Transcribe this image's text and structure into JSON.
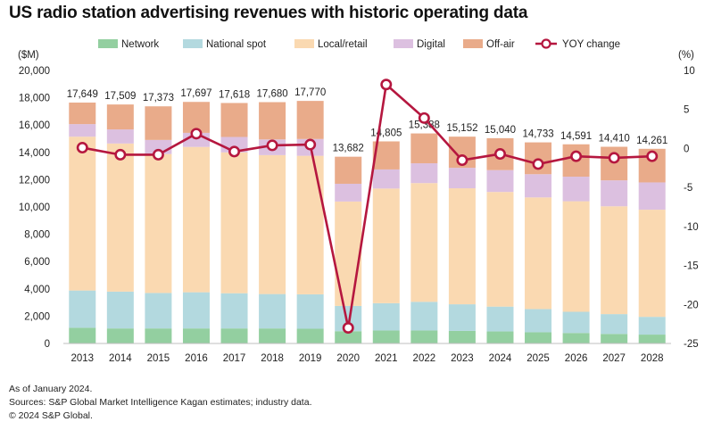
{
  "title": "US radio station advertising revenues with historic operating data",
  "footnotes": [
    "As of January 2024.",
    "Sources: S&P Global Market Intelligence Kagan estimates; industry data.",
    "© 2024 S&P Global."
  ],
  "chart_data": {
    "type": "bar",
    "stacked": true,
    "categories": [
      "2013",
      "2014",
      "2015",
      "2016",
      "2017",
      "2018",
      "2019",
      "2020",
      "2021",
      "2022",
      "2023",
      "2024",
      "2025",
      "2026",
      "2027",
      "2028"
    ],
    "totals": [
      17649,
      17509,
      17373,
      17697,
      17618,
      17680,
      17770,
      13682,
      14805,
      15388,
      15152,
      15040,
      14733,
      14591,
      14410,
      14261
    ],
    "total_labels": [
      "17,649",
      "17,509",
      "17,373",
      "17,697",
      "17,618",
      "17,680",
      "17,770",
      "13,682",
      "14,805",
      "15,388",
      "15,152",
      "15,040",
      "14,733",
      "14,591",
      "14,410",
      "14,261"
    ],
    "series": [
      {
        "name": "Network",
        "color": "#93cfa0",
        "values": [
          1150,
          1100,
          1100,
          1100,
          1100,
          1100,
          1080,
          900,
          950,
          950,
          920,
          880,
          820,
          770,
          700,
          650
        ]
      },
      {
        "name": "National spot",
        "color": "#b3d9df",
        "values": [
          2730,
          2700,
          2600,
          2650,
          2580,
          2520,
          2520,
          1850,
          2000,
          2100,
          1950,
          1820,
          1700,
          1550,
          1450,
          1300
        ]
      },
      {
        "name": "Local/retail",
        "color": "#fad9b1",
        "values": [
          11270,
          10850,
          10180,
          10650,
          10320,
          10180,
          10150,
          7650,
          8400,
          8700,
          8500,
          8400,
          8180,
          8100,
          7900,
          7850
        ]
      },
      {
        "name": "Digital",
        "color": "#dcc0e0",
        "values": [
          920,
          1030,
          1030,
          1030,
          1130,
          1150,
          1230,
          1300,
          1400,
          1450,
          1500,
          1600,
          1700,
          1800,
          1900,
          2000
        ]
      },
      {
        "name": "Off-air",
        "color": "#e9ab8a",
        "values": [
          1579,
          1829,
          2463,
          2267,
          2488,
          2730,
          2790,
          1982,
          2055,
          2188,
          2282,
          2340,
          2333,
          2371,
          2460,
          2461
        ]
      }
    ],
    "line_series": {
      "name": "YOY change",
      "color": "#b5173f",
      "axis": "right",
      "values": [
        0.1,
        -0.8,
        -0.8,
        1.9,
        -0.4,
        0.4,
        0.5,
        -23.0,
        8.2,
        3.9,
        -1.5,
        -0.7,
        -2.0,
        -1.0,
        -1.2,
        -1.0
      ]
    },
    "left_axis": {
      "label": "($M)",
      "min": 0,
      "max": 20000,
      "ticks": [
        0,
        2000,
        4000,
        6000,
        8000,
        10000,
        12000,
        14000,
        16000,
        18000,
        20000
      ],
      "tick_labels": [
        "0",
        "2,000",
        "4,000",
        "6,000",
        "8,000",
        "10,000",
        "12,000",
        "14,000",
        "16,000",
        "18,000",
        "20,000"
      ]
    },
    "right_axis": {
      "label": "(%)",
      "min": -25,
      "max": 10,
      "ticks": [
        10,
        5,
        0,
        -5,
        -10,
        -15,
        -20,
        -25
      ],
      "tick_labels": [
        "10",
        "5",
        "0",
        "-5",
        "-10",
        "-15",
        "-20",
        "-25"
      ]
    },
    "legend_position": "top",
    "grid": false
  }
}
